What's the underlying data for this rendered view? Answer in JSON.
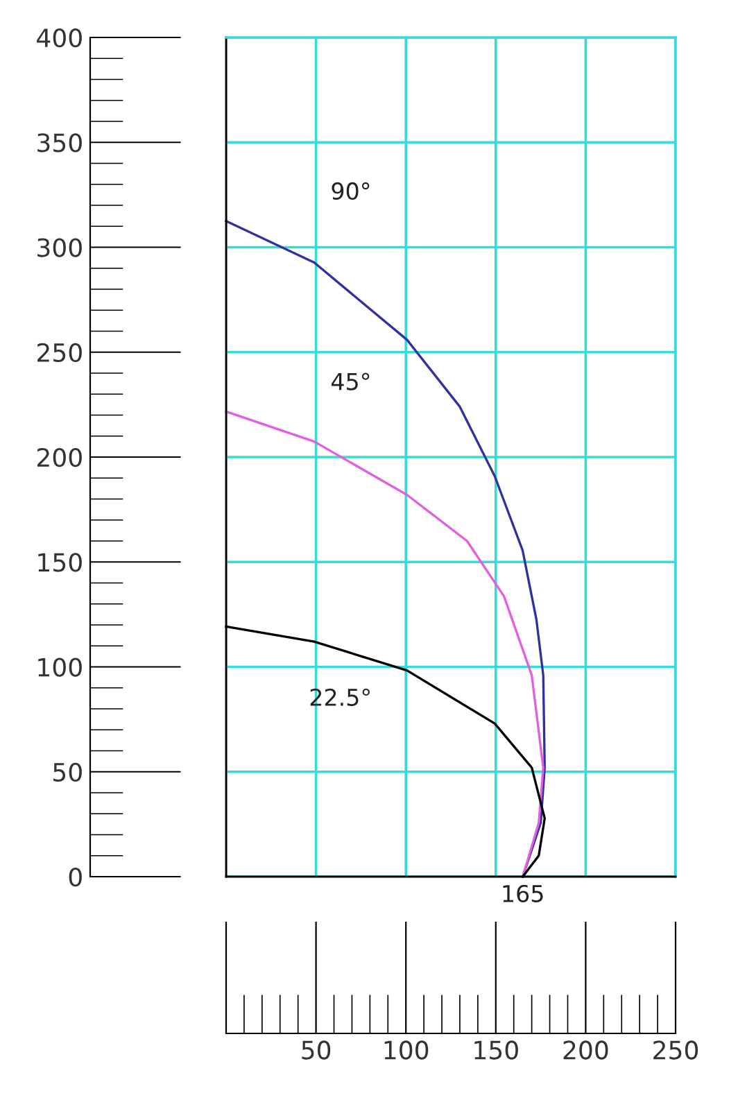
{
  "chart_data": {
    "type": "line",
    "xlim": [
      0,
      250
    ],
    "ylim": [
      0,
      400
    ],
    "xticks": [
      {
        "value": 0,
        "label": null
      },
      50,
      100,
      150,
      200,
      250
    ],
    "yticks": [
      0,
      50,
      100,
      150,
      200,
      250,
      300,
      350,
      400
    ],
    "grid": true,
    "legend": false,
    "marker": "none",
    "line_style": "solid",
    "series": [
      {
        "name": "90°",
        "color": "#3030a0",
        "x": [
          0,
          49,
          100.6,
          130,
          149.4,
          164.9,
          172.6,
          176.4,
          177.2,
          175,
          165
        ],
        "values": [
          312.5,
          292.7,
          255.9,
          224,
          190.9,
          155.6,
          122.5,
          96,
          52,
          25.7,
          0
        ]
      },
      {
        "name": "45°",
        "color": "#e060e0",
        "x": [
          0,
          49,
          100.6,
          134,
          154.6,
          170,
          176.4,
          173.9,
          165
        ],
        "values": [
          221.7,
          207.4,
          182,
          160,
          133.6,
          96,
          52,
          25.6,
          0
        ]
      },
      {
        "name": "22.5°",
        "color": "#000000",
        "x": [
          0,
          49,
          100.6,
          149.4,
          170,
          177.2,
          173.9,
          165
        ],
        "values": [
          119.2,
          112,
          98.3,
          73,
          52,
          27.8,
          10,
          0
        ]
      }
    ],
    "annotations": [
      {
        "text": "165",
        "x": 165,
        "y": 0
      }
    ]
  }
}
